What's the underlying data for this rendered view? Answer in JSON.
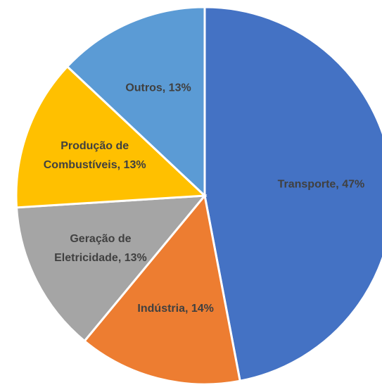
{
  "chart_data": {
    "type": "pie",
    "values": [
      47,
      14,
      13,
      13,
      13
    ],
    "value_labels": [
      [
        "Transporte, 47%"
      ],
      [
        "Indústria, 14%"
      ],
      [
        "Geração de",
        "Eletricidade, 13%"
      ],
      [
        "Produção de",
        "Combustíveis, 13%"
      ],
      [
        "Outros, 13%"
      ]
    ],
    "colors": [
      "#4472c4",
      "#ed7d31",
      "#a5a5a5",
      "#ffc000",
      "#5b9bd5"
    ]
  }
}
